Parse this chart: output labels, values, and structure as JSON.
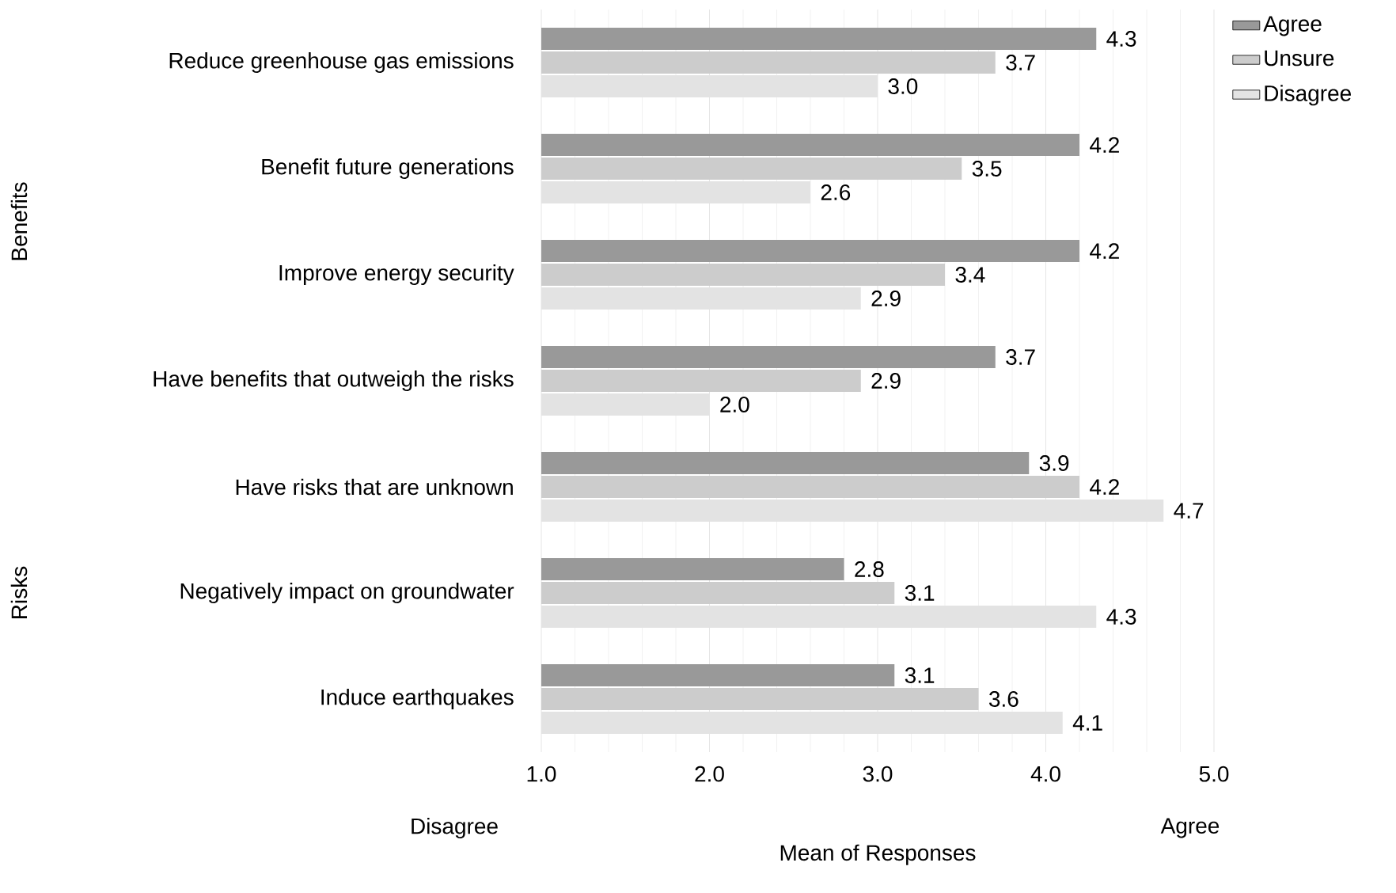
{
  "chart_data": {
    "type": "bar",
    "orientation": "horizontal",
    "categories": [
      "Reduce greenhouse gas emissions",
      "Benefit future generations",
      "Improve energy security",
      "Have benefits that outweigh the risks",
      "Have risks that are unknown",
      "Negatively impact on groundwater",
      "Induce earthquakes"
    ],
    "series": [
      {
        "name": "Agree",
        "color": "#999999",
        "values": [
          4.3,
          4.2,
          4.2,
          3.7,
          3.9,
          2.8,
          3.1
        ],
        "value_labels": [
          "4.3",
          "4.2",
          "4.2",
          "3.7",
          "3.9",
          "2.8",
          "3.1"
        ]
      },
      {
        "name": "Unsure",
        "color": "#cccccc",
        "values": [
          3.7,
          3.5,
          3.4,
          2.9,
          4.2,
          3.1,
          3.6
        ],
        "value_labels": [
          "3.7",
          "3.5",
          "3.4",
          "2.9",
          "4.2",
          "3.1",
          "3.6"
        ]
      },
      {
        "name": "Disagree",
        "color": "#e3e3e3",
        "values": [
          3.0,
          2.6,
          2.9,
          2.0,
          4.7,
          4.3,
          4.1
        ],
        "value_labels": [
          "3.0",
          "2.6",
          "2.9",
          "2.0",
          "4.7",
          "4.3",
          "4.1"
        ]
      }
    ],
    "xlim": [
      1.0,
      5.0
    ],
    "xticks": [
      {
        "value": 1,
        "label": "1.0"
      },
      {
        "value": 2,
        "label": "2.0"
      },
      {
        "value": 3,
        "label": "3.0"
      },
      {
        "value": 4,
        "label": "4.0"
      },
      {
        "value": 5,
        "label": "5.0"
      }
    ],
    "xlabel": "Mean of Responses",
    "annotations": [
      "Benefits",
      "Risks",
      "Disagree",
      "Agree"
    ],
    "grid": "x",
    "legend": "right"
  }
}
